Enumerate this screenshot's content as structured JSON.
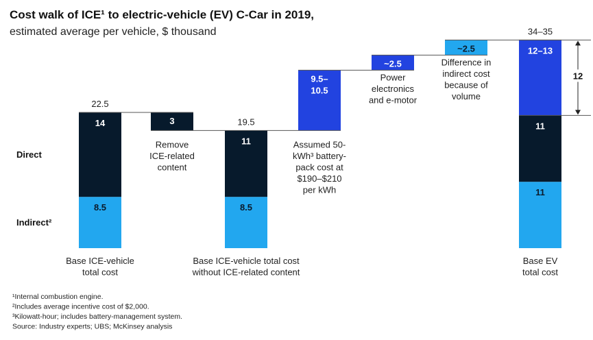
{
  "chart_data": {
    "type": "bar",
    "title": "Cost walk of ICE¹ to electric-vehicle (EV) C-Car in 2019,",
    "subtitle": "estimated average per vehicle, $ thousand",
    "row_labels": {
      "direct": "Direct",
      "indirect": "Indirect²"
    },
    "steps": [
      {
        "kind": "total",
        "direct": 14,
        "indirect": 8.5,
        "direct_label": "14",
        "indirect_label": "8.5",
        "total_label": "22.5",
        "caption": [
          "Base ICE-vehicle",
          "total cost"
        ]
      },
      {
        "kind": "delta",
        "from": 19.5,
        "to": 22.5,
        "value_label": "3",
        "color": "#071a2c",
        "text_color": "#ffffff",
        "caption": [
          "Remove",
          "ICE-related",
          "content"
        ]
      },
      {
        "kind": "total",
        "direct": 11,
        "indirect": 8.5,
        "direct_label": "11",
        "indirect_label": "8.5",
        "total_label": "19.5",
        "caption": [
          "Base ICE-vehicle total cost",
          "without ICE-related content"
        ]
      },
      {
        "kind": "delta",
        "from": 19.5,
        "to": 29.5,
        "value_label": [
          "9.5–",
          "10.5"
        ],
        "color": "#2243e0",
        "text_color": "#ffffff",
        "caption": [
          "Assumed 50-",
          "kWh³ battery-",
          "pack cost at",
          "$190–$210",
          "per kWh"
        ]
      },
      {
        "kind": "delta",
        "from": 29.5,
        "to": 32.0,
        "value_label": "~2.5",
        "color": "#2243e0",
        "text_color": "#ffffff",
        "caption": [
          "Power",
          "electronics",
          "and e-motor"
        ]
      },
      {
        "kind": "delta",
        "from": 32.0,
        "to": 34.5,
        "value_label": "~2.5",
        "color": "#22a7ef",
        "text_color": "#0b1a2b",
        "caption": [
          "Difference in",
          "indirect cost",
          "because of",
          "volume"
        ]
      },
      {
        "kind": "total_ev",
        "indirect": 11,
        "direct": 11,
        "battery": 12.5,
        "indirect_label": "11",
        "direct_label": "11",
        "battery_label": "12–13",
        "total_label": "34–35",
        "caption": [
          "Base EV",
          "total cost"
        ]
      }
    ],
    "bracket_label": "12",
    "ylim": [
      0,
      34.5
    ],
    "colors": {
      "direct": "#071a2c",
      "indirect": "#22a7ef",
      "battery": "#2243e0"
    }
  },
  "footnotes": [
    "¹Internal combustion engine.",
    "²Includes average incentive cost of $2,000.",
    "³Kilowatt-hour; includes battery-management system.",
    "Source: Industry experts; UBS; McKinsey analysis"
  ]
}
